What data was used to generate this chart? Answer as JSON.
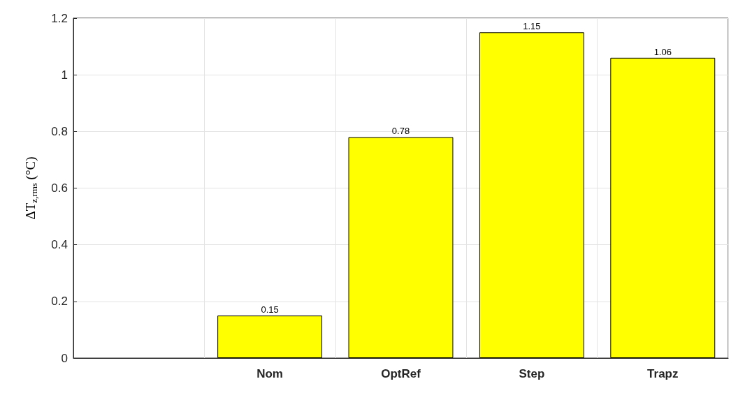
{
  "chart_data": {
    "type": "bar",
    "ylabel": "ΔT$_{z,rms}$ (°C)",
    "categories": [
      null,
      "Nom",
      "OptRef",
      "Step",
      "Trapz"
    ],
    "values": [
      null,
      0.15,
      0.78,
      1.15,
      1.06
    ],
    "color": "#ffff00",
    "ylim": [
      0,
      1.2
    ],
    "yticks": [
      0,
      0.2,
      0.4,
      0.6,
      0.8,
      1,
      1.2
    ],
    "grid": true,
    "data_labels": true
  }
}
